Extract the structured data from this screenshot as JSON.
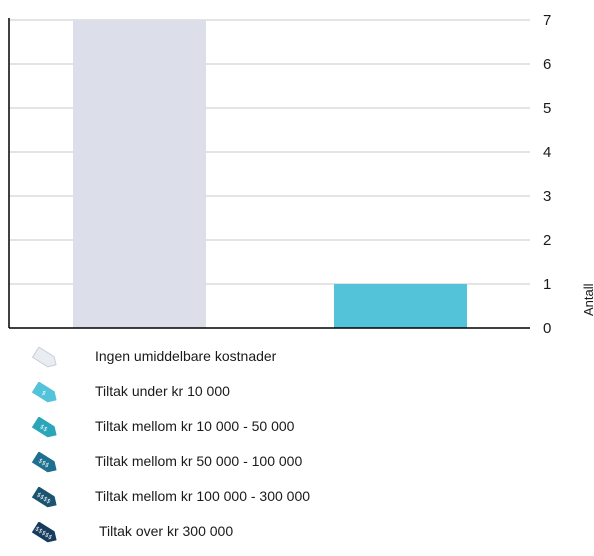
{
  "chart_data": {
    "type": "bar",
    "categories": [
      "Ingen umiddelbare kostnader",
      "Tiltak under kr 10 000"
    ],
    "values": [
      7,
      1
    ],
    "bar_colors": [
      "#dcdee9",
      "#53c3d9"
    ],
    "ylabel": "Antall",
    "ylim": [
      0,
      7
    ],
    "yticks": [
      "0",
      "1",
      "2",
      "3",
      "4",
      "5",
      "6",
      "7"
    ],
    "grid": true,
    "y_axis_side": "right",
    "legend_placement": "bottom"
  },
  "legend": [
    {
      "label": "Ingen umiddelbare kostnader",
      "icon": "price-tag-blank-icon",
      "color": "#e9ecf0",
      "stroke": "#c9ced6",
      "mark": ""
    },
    {
      "label": "Tiltak under kr 10 000",
      "icon": "price-tag-one-icon",
      "color": "#53c3d9",
      "stroke": "#53c3d9",
      "mark": "$"
    },
    {
      "label": "Tiltak mellom kr 10 000 - 50 000",
      "icon": "price-tag-two-icon",
      "color": "#2aa6b8",
      "stroke": "#2aa6b8",
      "mark": "$$"
    },
    {
      "label": "Tiltak mellom kr 50 000 - 100 000",
      "icon": "price-tag-three-icon",
      "color": "#1f6f8f",
      "stroke": "#1f6f8f",
      "mark": "$$$"
    },
    {
      "label": "Tiltak mellom kr 100 000 - 300 000",
      "icon": "price-tag-four-icon",
      "color": "#1b5470",
      "stroke": "#1b5470",
      "mark": "$$$$"
    },
    {
      "label": "Tiltak over kr  300 000",
      "icon": "price-tag-five-icon",
      "color": "#173b5c",
      "stroke": "#173b5c",
      "mark": "$$$$$"
    }
  ]
}
